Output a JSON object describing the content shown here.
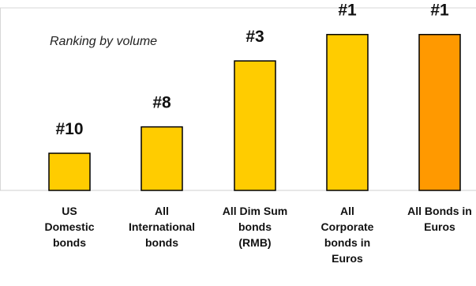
{
  "chart_data": {
    "type": "bar",
    "subtitle": "Ranking by volume",
    "categories": [
      [
        "US",
        "Domestic",
        "bonds"
      ],
      [
        "All",
        "International",
        "bonds"
      ],
      [
        "All Dim Sum",
        "bonds",
        "(RMB)"
      ],
      [
        "All",
        "Corporate",
        "bonds in",
        "Euros"
      ],
      [
        "All Bonds in",
        "Euros"
      ]
    ],
    "values": [
      10,
      8,
      3,
      1,
      1
    ],
    "rank_labels": [
      "#10",
      "#8",
      "#3",
      "#1",
      "#1"
    ],
    "bar_colors": [
      "#FFCC00",
      "#FFCC00",
      "#FFCC00",
      "#FFCC00",
      "#FF9900"
    ],
    "bar_stroke": "#000000",
    "grid": false,
    "legend": "none"
  }
}
